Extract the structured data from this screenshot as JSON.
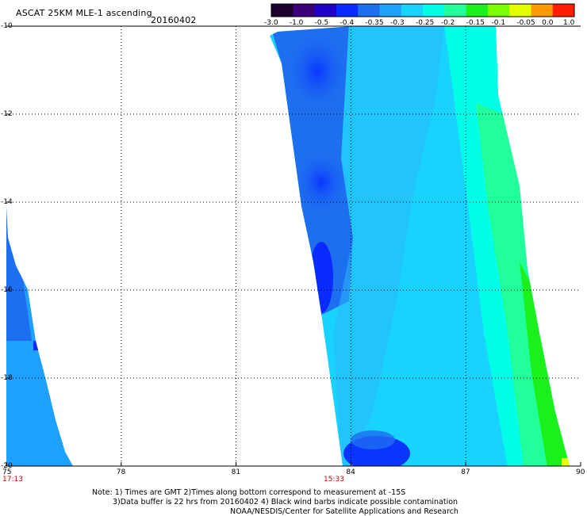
{
  "header": {
    "title": "ASCAT 25KM MLE-1 ascending",
    "date": "20160402"
  },
  "colorbar": {
    "labels": [
      "-3.0",
      "-1.0",
      "-0.5",
      "-0.4",
      "-0.35",
      "-0.3",
      "-0.25",
      "-0.2",
      "-0.15",
      "-0.1",
      "-0.05",
      "0.0",
      "1.0"
    ],
    "colors": [
      "#1a0030",
      "#3c0078",
      "#2000c8",
      "#0a2bff",
      "#1e6ef0",
      "#1ea0ff",
      "#18d2ff",
      "#00ffe6",
      "#20ff9a",
      "#1cf01c",
      "#7aff00",
      "#e6ff00",
      "#ff9a00",
      "#ff1e00"
    ]
  },
  "axes": {
    "lon_labels": [
      "75",
      "78",
      "81",
      "84",
      "87",
      "90"
    ],
    "lat_labels": [
      "-10",
      "-12",
      "-14",
      "-16",
      "-18",
      "-20"
    ],
    "lon_range": [
      75,
      90
    ],
    "lat_range": [
      -20,
      -10
    ]
  },
  "times": [
    "17:13",
    "15:33"
  ],
  "notes": [
    "Note: 1) Times are GMT 2)Times along bottom correspond to measurement at -15S",
    "3)Data buffer is 22 hrs from 20160402 4) Black wind barbs indicate possible contamination",
    "NOAA/NESDIS/Center for Satellite Applications and Research"
  ]
}
